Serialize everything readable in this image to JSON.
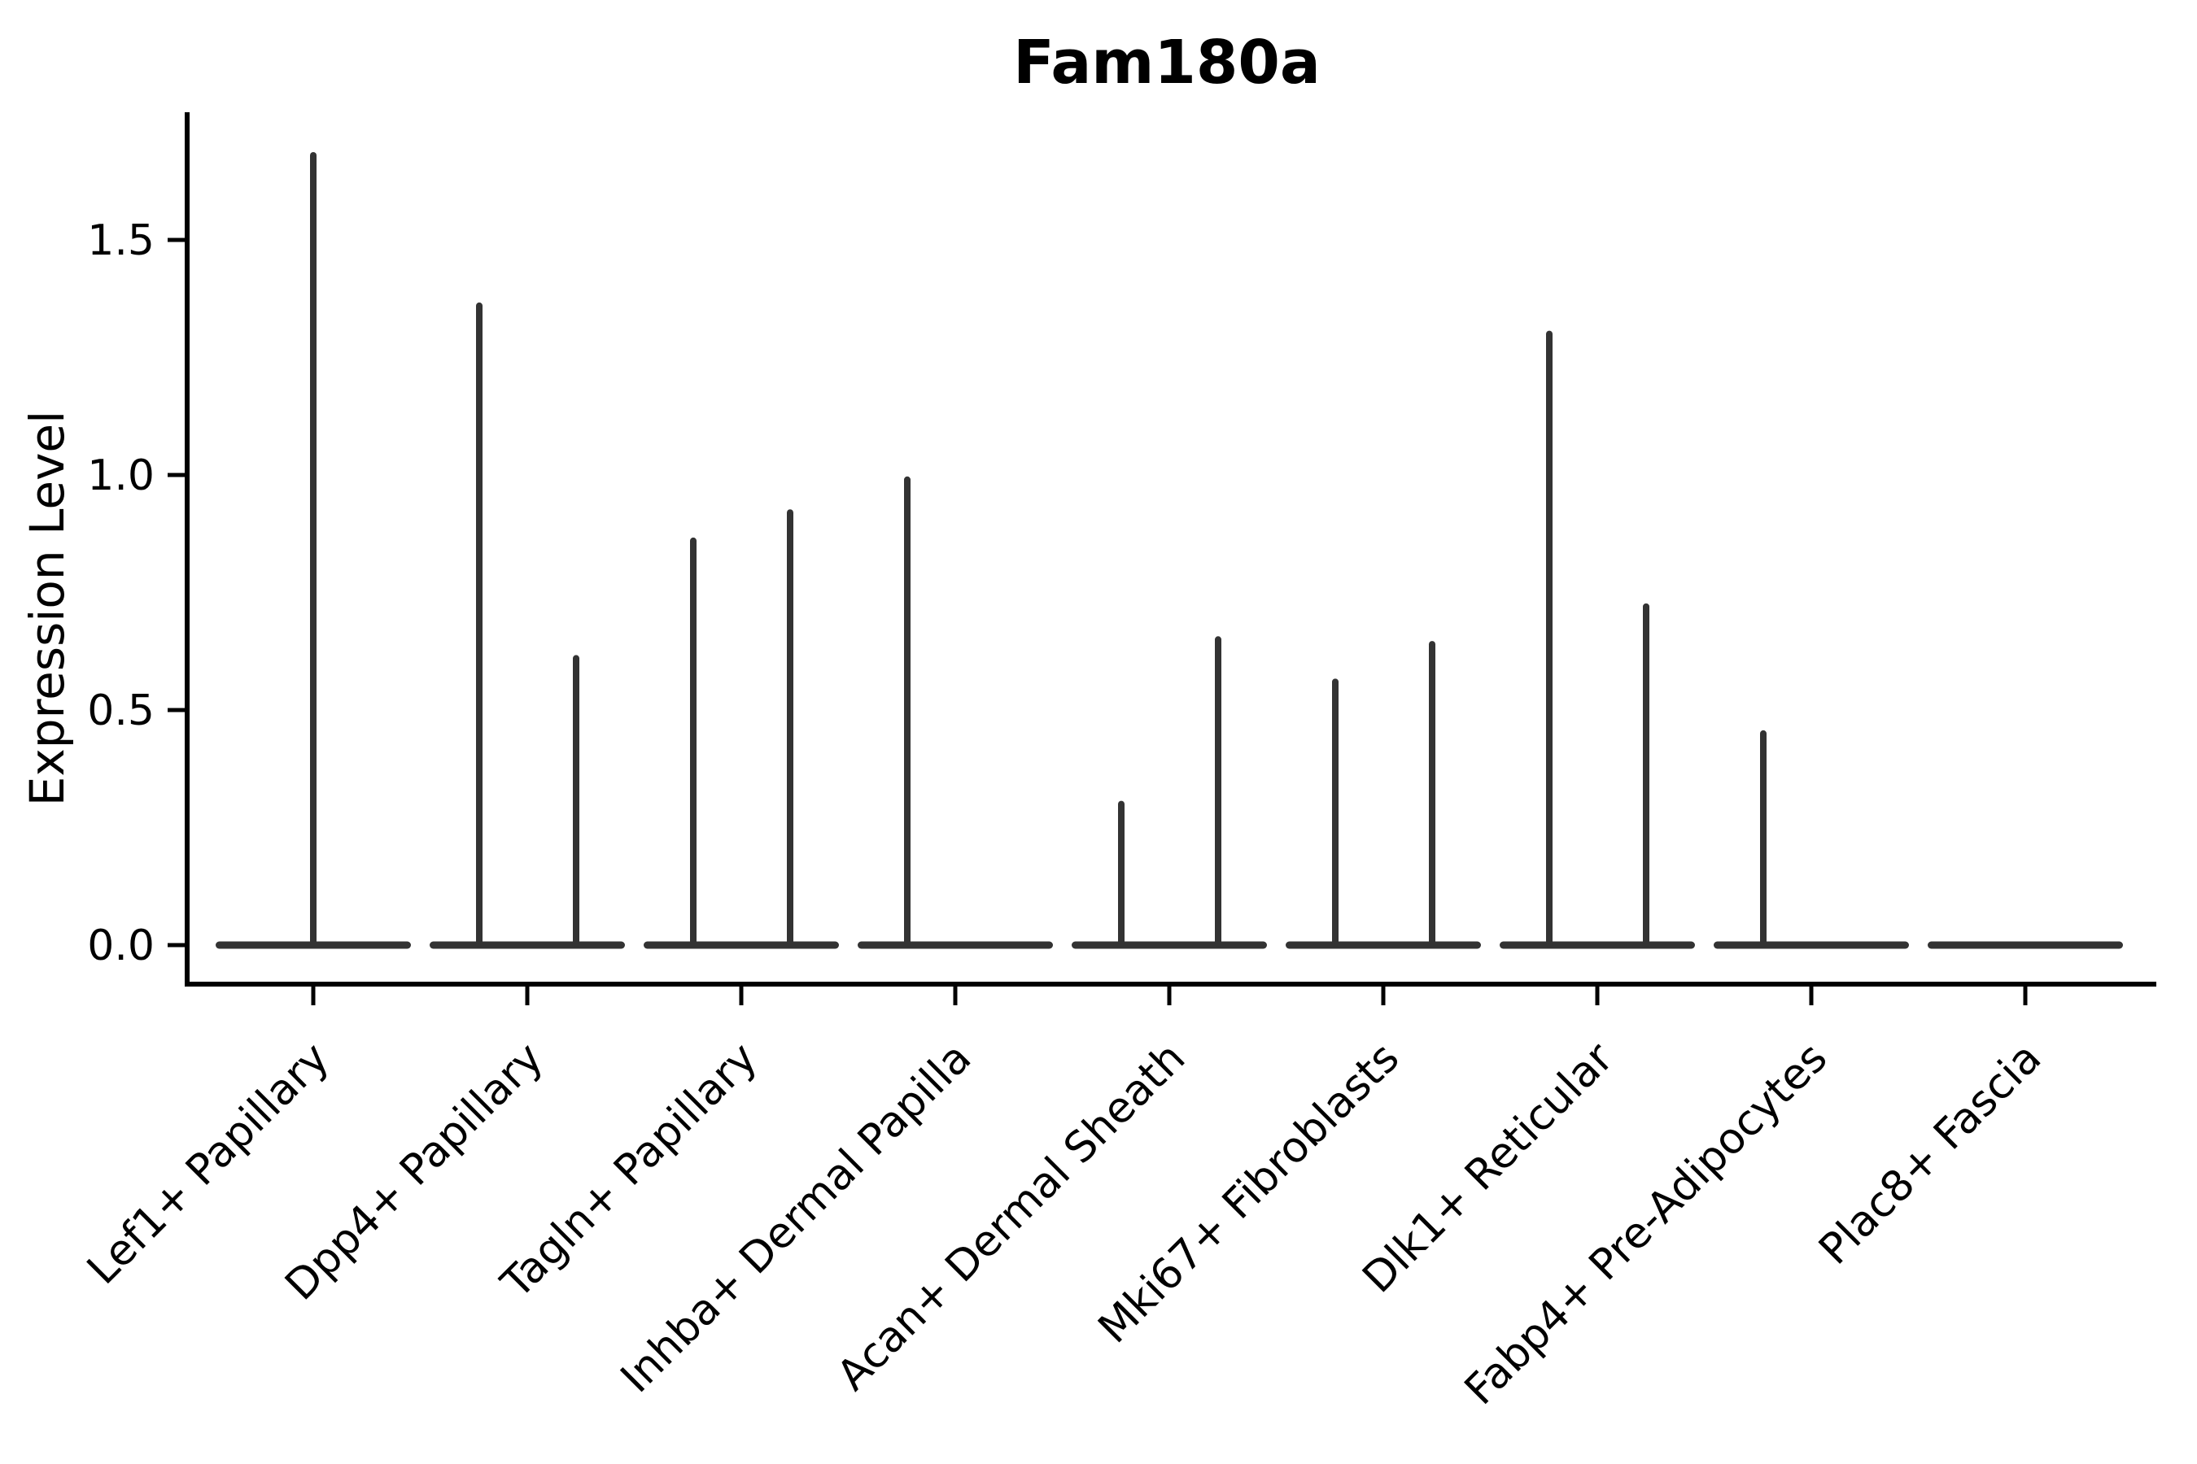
{
  "title": "Fam180a",
  "ylabel": "Expression Level",
  "chart_data": {
    "type": "violin",
    "title": "Fam180a",
    "xlabel": "",
    "ylabel": "Expression Level",
    "ylim": [
      0,
      1.77
    ],
    "ytick_values": [
      0.0,
      0.5,
      1.0,
      1.5
    ],
    "ytick_labels": [
      "0.0",
      "0.5",
      "1.0",
      "1.5"
    ],
    "grid": false,
    "legend": "none",
    "background": "#ffffff",
    "colors": {
      "violin": "#333333",
      "axis": "#000000",
      "text": "#000000"
    },
    "categories": [
      "Lef1+ Papillary",
      "Dpp4+ Papillary",
      "Tagln+ Papillary",
      "Inhba+ Dermal Papilla",
      "Acan+ Dermal Sheath",
      "Mki67+ Fibroblasts",
      "Dlk1+ Reticular",
      "Fabp4+ Pre-Adipocytes",
      "Plac8+ Fascia"
    ],
    "series": [
      {
        "category": "Lef1+ Papillary",
        "zero_inflated": true,
        "violins": [
          {
            "position": "center",
            "max_expression": 1.68
          }
        ]
      },
      {
        "category": "Dpp4+ Papillary",
        "zero_inflated": true,
        "violins": [
          {
            "position": "left",
            "max_expression": 1.36
          },
          {
            "position": "right",
            "max_expression": 0.61
          }
        ]
      },
      {
        "category": "Tagln+ Papillary",
        "zero_inflated": true,
        "violins": [
          {
            "position": "left",
            "max_expression": 0.86
          },
          {
            "position": "right",
            "max_expression": 0.92
          }
        ]
      },
      {
        "category": "Inhba+ Dermal Papilla",
        "zero_inflated": true,
        "violins": [
          {
            "position": "left",
            "max_expression": 0.99
          }
        ]
      },
      {
        "category": "Acan+ Dermal Sheath",
        "zero_inflated": true,
        "violins": [
          {
            "position": "left",
            "max_expression": 0.3
          },
          {
            "position": "right",
            "max_expression": 0.65
          }
        ]
      },
      {
        "category": "Mki67+ Fibroblasts",
        "zero_inflated": true,
        "violins": [
          {
            "position": "left",
            "max_expression": 0.56
          },
          {
            "position": "right",
            "max_expression": 0.64
          }
        ]
      },
      {
        "category": "Dlk1+ Reticular",
        "zero_inflated": true,
        "violins": [
          {
            "position": "left",
            "max_expression": 1.3
          },
          {
            "position": "right",
            "max_expression": 0.72
          }
        ]
      },
      {
        "category": "Fabp4+ Pre-Adipocytes",
        "zero_inflated": true,
        "violins": [
          {
            "position": "left",
            "max_expression": 0.45
          }
        ]
      },
      {
        "category": "Plac8+ Fascia",
        "zero_inflated": true,
        "violins": []
      }
    ]
  }
}
